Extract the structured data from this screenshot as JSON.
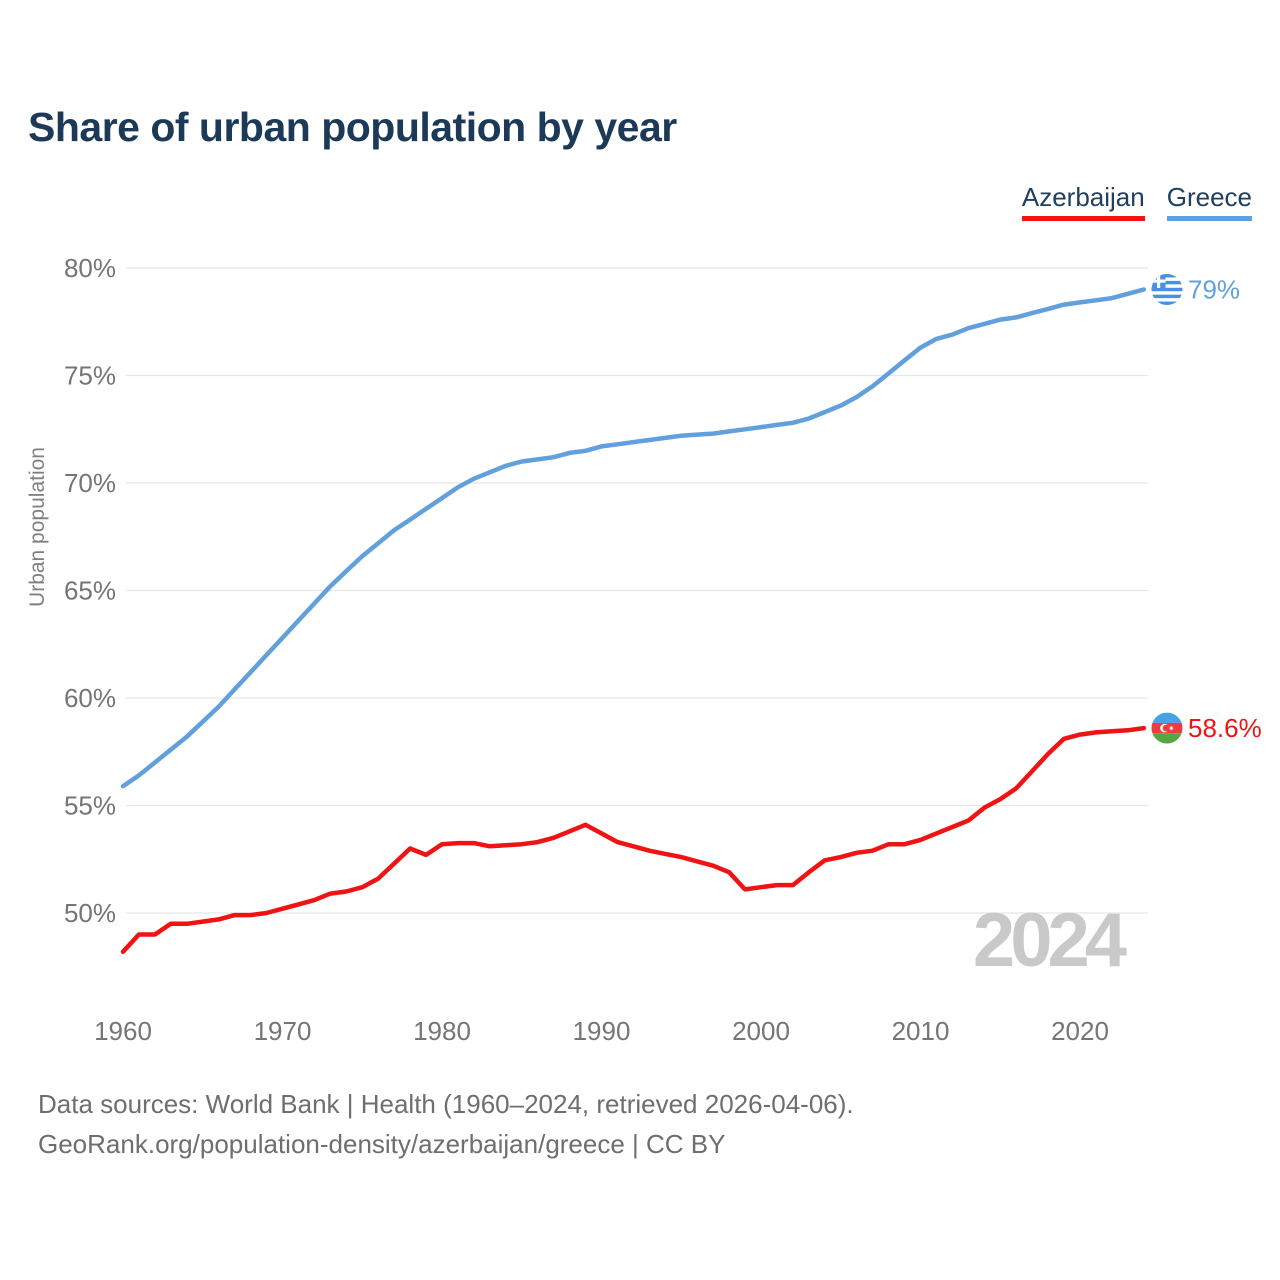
{
  "title": "Share of urban population by year",
  "watermark": "2024",
  "footer": {
    "line1": "Data sources: World Bank | Health (1960–2024, retrieved 2026-04-06).",
    "line2": "GeoRank.org/population-density/azerbaijan/greece | CC BY"
  },
  "chart_data": {
    "type": "line",
    "title": "Share of urban population by year",
    "xlabel": "",
    "ylabel": "Urban population",
    "grid": true,
    "legend_position": "top-right",
    "x_start": 1960,
    "x_end": 2024,
    "xlim": [
      1960,
      2024
    ],
    "ylim": [
      47.5,
      81
    ],
    "x_ticks": [
      {
        "value": 1960,
        "label": "1960"
      },
      {
        "value": 1970,
        "label": "1970"
      },
      {
        "value": 1980,
        "label": "1980"
      },
      {
        "value": 1990,
        "label": "1990"
      },
      {
        "value": 2000,
        "label": "2000"
      },
      {
        "value": 2010,
        "label": "2010"
      },
      {
        "value": 2020,
        "label": "2020"
      }
    ],
    "y_ticks": [
      {
        "value": 50,
        "label": "50%"
      },
      {
        "value": 55,
        "label": "55%"
      },
      {
        "value": 60,
        "label": "60%"
      },
      {
        "value": 65,
        "label": "65%"
      },
      {
        "value": 70,
        "label": "70%"
      },
      {
        "value": 75,
        "label": "75%"
      },
      {
        "value": 80,
        "label": "80%"
      }
    ],
    "series": [
      {
        "name": "Azerbaijan",
        "color": "#ef1313",
        "end_label": "58.6%",
        "icon": "azerbaijan-flag-icon",
        "values": [
          48.2,
          49.0,
          49.0,
          49.5,
          49.5,
          49.6,
          49.7,
          49.9,
          49.9,
          50.0,
          50.2,
          50.4,
          50.6,
          50.9,
          51.0,
          51.2,
          51.6,
          52.3,
          53.0,
          52.7,
          53.2,
          53.25,
          53.25,
          53.1,
          53.15,
          53.2,
          53.3,
          53.5,
          53.8,
          54.1,
          53.7,
          53.3,
          53.1,
          52.9,
          52.75,
          52.6,
          52.4,
          52.2,
          51.9,
          51.1,
          51.2,
          51.3,
          51.3,
          51.9,
          52.45,
          52.6,
          52.8,
          52.9,
          53.2,
          53.2,
          53.4,
          53.7,
          54.0,
          54.3,
          54.9,
          55.3,
          55.8,
          56.6,
          57.4,
          58.1,
          58.3,
          58.4,
          58.45,
          58.5,
          58.6
        ]
      },
      {
        "name": "Greece",
        "color": "#61a0dd",
        "end_label": "79%",
        "icon": "greece-flag-icon",
        "values": [
          55.9,
          56.4,
          57.0,
          57.6,
          58.2,
          58.9,
          59.6,
          60.4,
          61.2,
          62.0,
          62.8,
          63.6,
          64.4,
          65.2,
          65.9,
          66.6,
          67.2,
          67.8,
          68.3,
          68.8,
          69.3,
          69.8,
          70.2,
          70.5,
          70.8,
          71.0,
          71.1,
          71.2,
          71.4,
          71.5,
          71.7,
          71.8,
          71.9,
          72.0,
          72.1,
          72.2,
          72.25,
          72.3,
          72.4,
          72.5,
          72.6,
          72.7,
          72.8,
          73.0,
          73.3,
          73.6,
          74.0,
          74.5,
          75.1,
          75.7,
          76.3,
          76.7,
          76.9,
          77.2,
          77.4,
          77.6,
          77.7,
          77.9,
          78.1,
          78.3,
          78.4,
          78.5,
          78.6,
          78.8,
          79.0
        ]
      }
    ],
    "flag_colors": {
      "greece_blue": "#4a90e2",
      "azerbaijan_blue": "#45a2e6",
      "azerbaijan_red": "#ee3b43",
      "azerbaijan_green": "#57a644"
    }
  }
}
